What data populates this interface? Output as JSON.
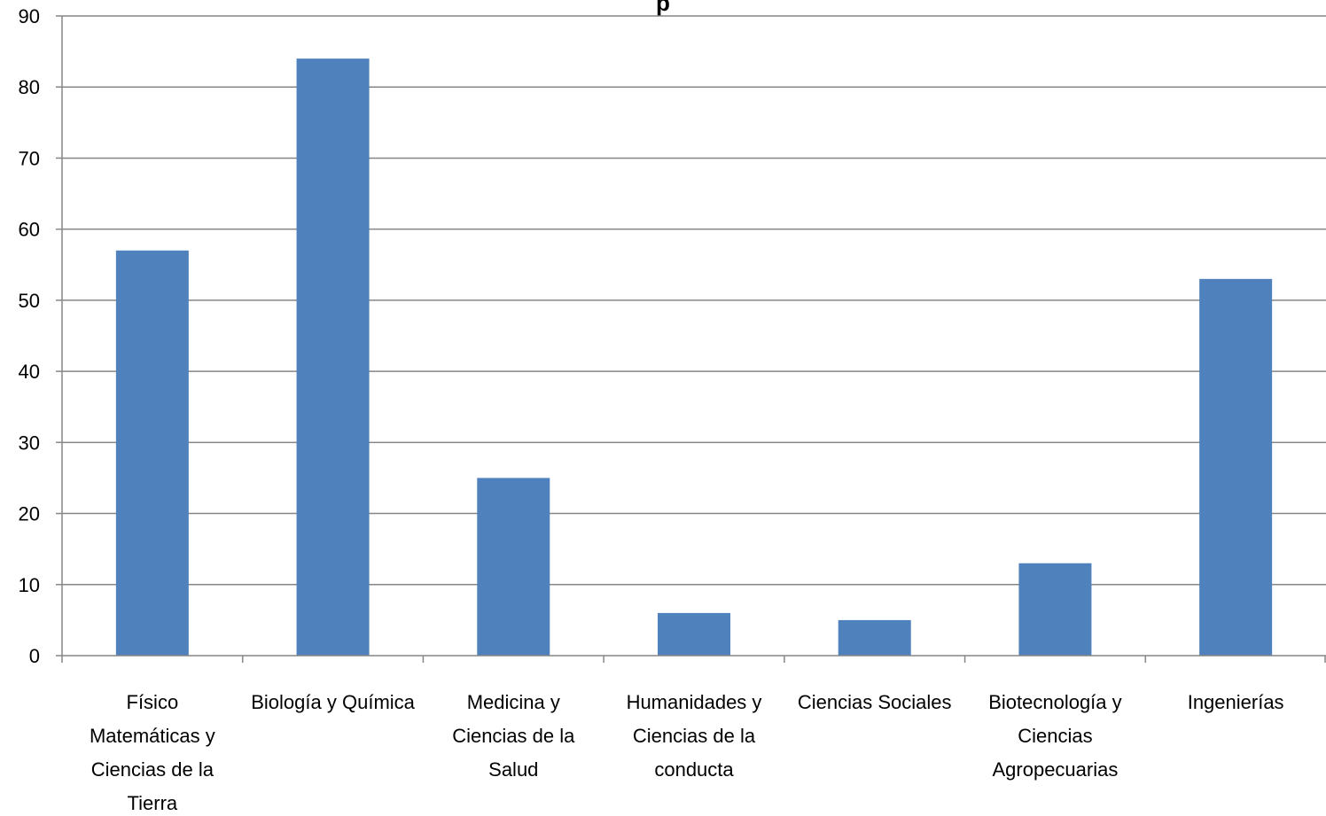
{
  "chart_data": {
    "type": "bar",
    "title_fragment": "p",
    "categories": [
      [
        "Físico",
        "Matemáticas  y",
        "Ciencias de la",
        "Tierra"
      ],
      [
        "Biología y Química"
      ],
      [
        "Medicina y",
        "Ciencias de la",
        "Salud"
      ],
      [
        "Humanidades  y",
        "Ciencias de la",
        "conducta"
      ],
      [
        "Ciencias Sociales"
      ],
      [
        "Biotecnología y",
        "Ciencias",
        "Agropecuarias"
      ],
      [
        "Ingenierías"
      ]
    ],
    "values": [
      57,
      84,
      25,
      6,
      5,
      13,
      53
    ],
    "ylim": [
      0,
      90
    ],
    "yticks": [
      0,
      10,
      20,
      30,
      40,
      50,
      60,
      70,
      80,
      90
    ],
    "grid": true,
    "legend": "none",
    "bar_color": "#4F81BD",
    "grid_color": "#868686",
    "axis_color": "#868686"
  }
}
